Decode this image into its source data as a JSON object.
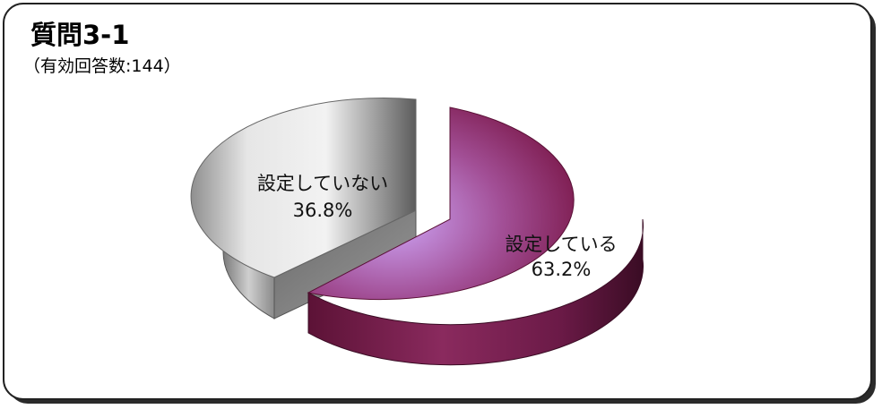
{
  "page": {
    "title": "質問3-1",
    "subtitle": "（有効回答数:144）"
  },
  "chart_data": {
    "type": "pie",
    "title": "質問3-1",
    "subtitle": "（有効回答数:144）",
    "slices": [
      {
        "label": "設定している",
        "value": 63.2,
        "value_label": "63.2%",
        "color": "#8a1f55"
      },
      {
        "label": "設定していない",
        "value": 36.8,
        "value_label": "36.8%",
        "color": "#a9a9a9"
      }
    ],
    "style": "3d-exploded"
  }
}
